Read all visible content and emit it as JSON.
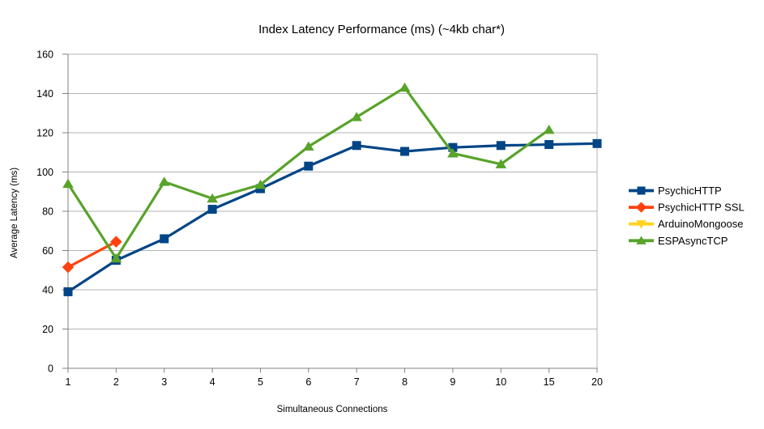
{
  "chart_data": {
    "type": "line",
    "title": "Index Latency Performance (ms) (~4kb char*)",
    "xlabel": "Simultaneous Connections",
    "ylabel": "Average Latency (ms)",
    "categories": [
      "1",
      "2",
      "3",
      "4",
      "5",
      "6",
      "7",
      "8",
      "9",
      "10",
      "15",
      "20"
    ],
    "ylim": [
      0,
      160
    ],
    "ytick_step": 20,
    "grid": "horizontal",
    "legend_position": "right",
    "colors": {
      "background": "#ffffff",
      "gridline": "#b3b3b3",
      "axis": "#808080",
      "text": "#000000"
    },
    "series": [
      {
        "name": "PsychicHTTP",
        "color": "#004586",
        "marker": "square",
        "values": [
          39,
          55,
          66,
          81,
          91.5,
          103,
          113.5,
          110.5,
          112.5,
          113.5,
          114,
          114.5
        ]
      },
      {
        "name": "PsychicHTTP SSL",
        "color": "#ff420e",
        "marker": "diamond",
        "values": [
          51.5,
          64.5,
          null,
          null,
          null,
          null,
          null,
          null,
          null,
          null,
          null,
          null
        ]
      },
      {
        "name": "ArduinoMongoose",
        "color": "#ffd320",
        "marker": "triangle-down",
        "values": [
          null,
          null,
          null,
          null,
          null,
          null,
          null,
          null,
          null,
          null,
          null,
          null
        ]
      },
      {
        "name": "ESPAsyncTCP",
        "color": "#58a32a",
        "marker": "triangle-up",
        "values": [
          94,
          56,
          95,
          86.5,
          93.5,
          113,
          128,
          143,
          109.5,
          104,
          121.5,
          null
        ]
      }
    ]
  }
}
